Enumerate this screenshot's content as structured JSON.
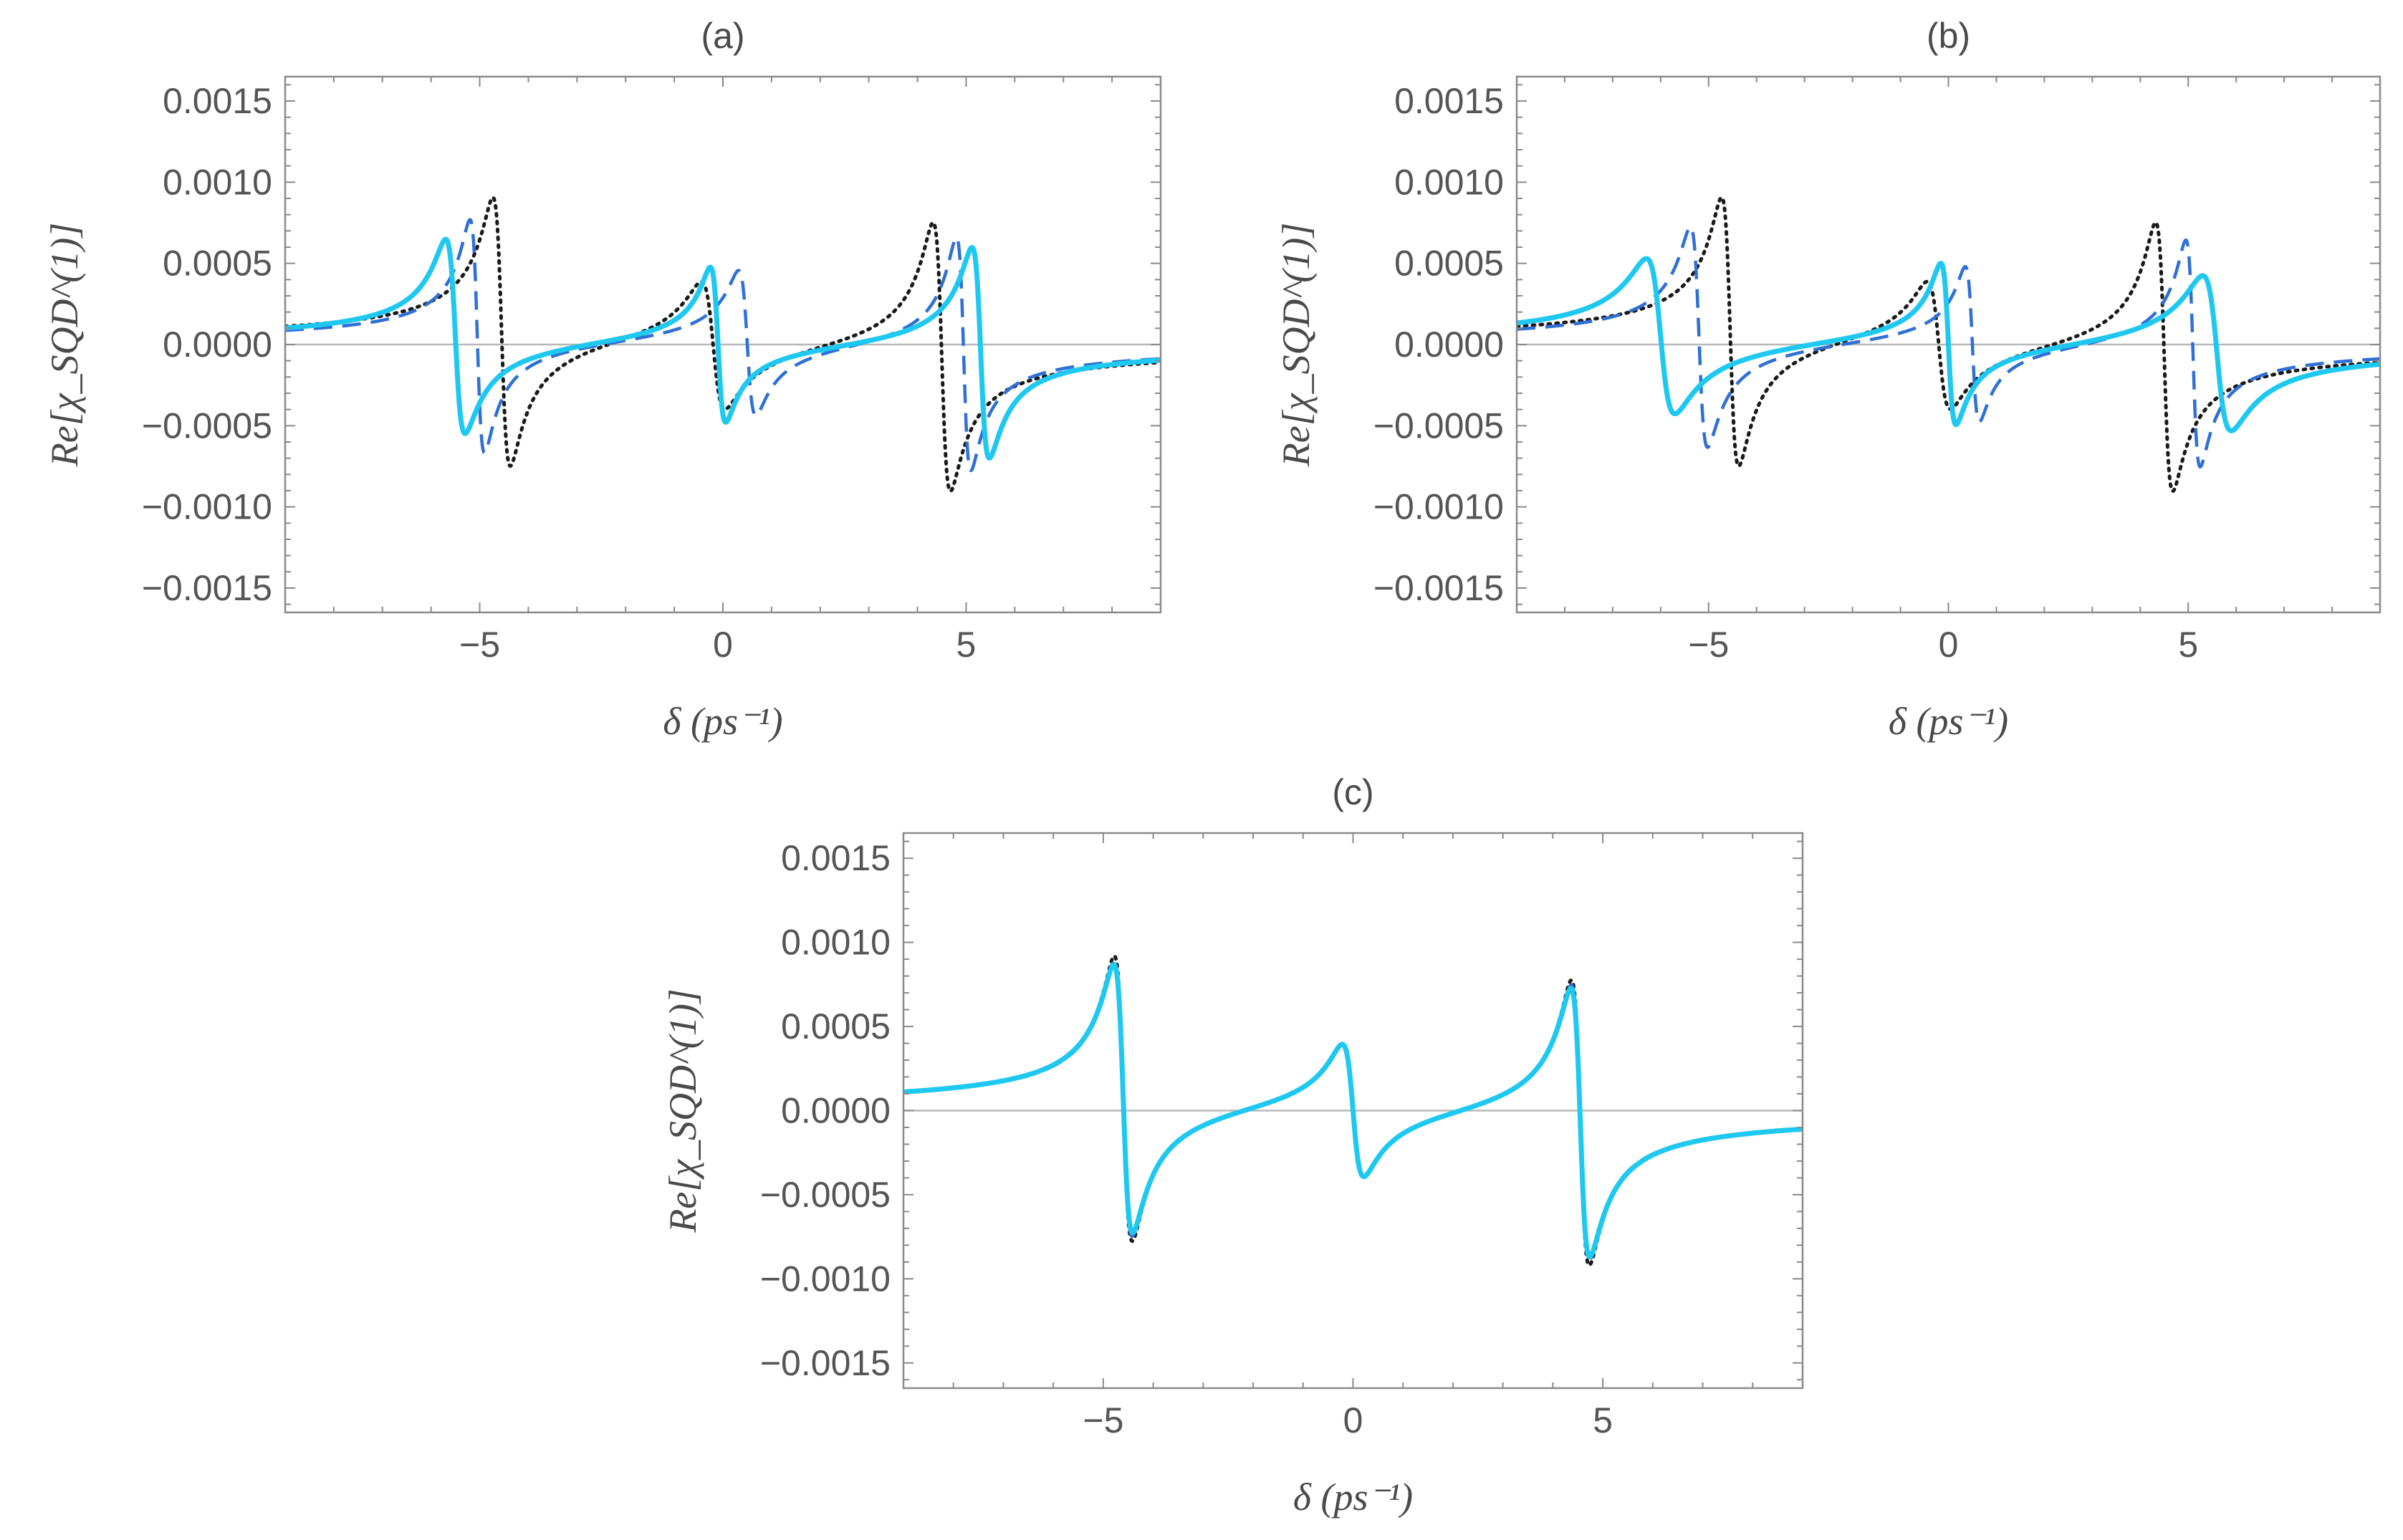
{
  "chart_data": [
    {
      "panel": "(a)",
      "type": "line",
      "title": "(a)",
      "xlabel": "δ (ps⁻¹)",
      "ylabel": "Re[χ_SQD^(1)]",
      "xlim": [
        -9,
        9
      ],
      "ylim": [
        -0.00165,
        0.00165
      ],
      "xticks": [
        -5,
        0,
        5
      ],
      "xtick_labels": [
        "−5",
        "0",
        "5"
      ],
      "yticks": [
        0.0015,
        0.001,
        0.0005,
        0.0,
        -0.0005,
        -0.001,
        -0.0015
      ],
      "ytick_labels": [
        "0.0015",
        "0.0010",
        "0.0005",
        "0.0000",
        "−0.0005",
        "−0.0010",
        "−0.0015"
      ],
      "series": [
        {
          "name": "dotted",
          "style": "dotted",
          "color": "#1a1a1a",
          "resonances": [
            {
              "center": -4.55,
              "amp": 0.00083,
              "gamma": 0.18
            },
            {
              "center": -0.2,
              "amp": 0.0004,
              "gamma": 0.25
            },
            {
              "center": 4.5,
              "amp": 0.00083,
              "gamma": 0.18
            }
          ]
        },
        {
          "name": "dashed",
          "style": "dashed",
          "color": "#2f6fd6",
          "resonances": [
            {
              "center": -5.05,
              "amp": 0.00072,
              "gamma": 0.15
            },
            {
              "center": 0.5,
              "amp": 0.00045,
              "gamma": 0.18
            },
            {
              "center": 4.95,
              "amp": 0.00072,
              "gamma": 0.15
            }
          ]
        },
        {
          "name": "solid",
          "style": "solid",
          "color": "#1ec8f0",
          "resonances": [
            {
              "center": -5.5,
              "amp": 0.0006,
              "gamma": 0.2
            },
            {
              "center": -0.1,
              "amp": 0.00048,
              "gamma": 0.16
            },
            {
              "center": 5.3,
              "amp": 0.00065,
              "gamma": 0.18
            }
          ]
        }
      ]
    },
    {
      "panel": "(b)",
      "type": "line",
      "title": "(b)",
      "xlabel": "δ (ps⁻¹)",
      "ylabel": "Re[χ_SQD^(1)]",
      "xlim": [
        -9,
        9
      ],
      "ylim": [
        -0.00165,
        0.00165
      ],
      "xticks": [
        -5,
        0,
        5
      ],
      "xtick_labels": [
        "−5",
        "0",
        "5"
      ],
      "yticks": [
        0.0015,
        0.001,
        0.0005,
        0.0,
        -0.0005,
        -0.001,
        -0.0015
      ],
      "ytick_labels": [
        "0.0015",
        "0.0010",
        "0.0005",
        "0.0000",
        "−0.0005",
        "−0.0010",
        "−0.0015"
      ],
      "series": [
        {
          "name": "dotted",
          "style": "dotted",
          "color": "#1a1a1a",
          "resonances": [
            {
              "center": -4.55,
              "amp": 0.00083,
              "gamma": 0.18
            },
            {
              "center": -0.2,
              "amp": 0.0004,
              "gamma": 0.25
            },
            {
              "center": 4.5,
              "amp": 0.00083,
              "gamma": 0.18
            }
          ]
        },
        {
          "name": "dashed",
          "style": "dashed",
          "color": "#2f6fd6",
          "resonances": [
            {
              "center": -5.2,
              "amp": 0.00068,
              "gamma": 0.18
            },
            {
              "center": 0.5,
              "amp": 0.00048,
              "gamma": 0.15
            },
            {
              "center": 5.1,
              "amp": 0.0007,
              "gamma": 0.15
            }
          ]
        },
        {
          "name": "solid",
          "style": "solid",
          "color": "#1ec8f0",
          "resonances": [
            {
              "center": -6.0,
              "amp": 0.00048,
              "gamma": 0.3
            },
            {
              "center": 0.0,
              "amp": 0.0005,
              "gamma": 0.16
            },
            {
              "center": 5.6,
              "amp": 0.00048,
              "gamma": 0.3
            }
          ]
        }
      ]
    },
    {
      "panel": "(c)",
      "type": "line",
      "title": "(c)",
      "xlabel": "δ (ps⁻¹)",
      "ylabel": "Re[χ_SQD^(1)]",
      "xlim": [
        -9,
        9
      ],
      "ylim": [
        -0.00165,
        0.00165
      ],
      "xticks": [
        -5,
        0,
        5
      ],
      "xtick_labels": [
        "−5",
        "0",
        "5"
      ],
      "yticks": [
        0.0015,
        0.001,
        0.0005,
        0.0,
        -0.0005,
        -0.001,
        -0.0015
      ],
      "ytick_labels": [
        "0.0015",
        "0.0010",
        "0.0005",
        "0.0000",
        "−0.0005",
        "−0.0010",
        "−0.0015"
      ],
      "series": [
        {
          "name": "dotted",
          "style": "dotted",
          "color": "#1a1a1a",
          "resonances": [
            {
              "center": -4.6,
              "amp": 0.00085,
              "gamma": 0.18
            },
            {
              "center": 0.0,
              "amp": 0.0004,
              "gamma": 0.22
            },
            {
              "center": 4.55,
              "amp": 0.00085,
              "gamma": 0.18
            }
          ]
        },
        {
          "name": "dashed",
          "style": "dashed",
          "color": "#2f6fd6",
          "resonances": [
            {
              "center": -4.6,
              "amp": 0.00082,
              "gamma": 0.18
            },
            {
              "center": 0.0,
              "amp": 0.0004,
              "gamma": 0.22
            },
            {
              "center": 4.55,
              "amp": 0.00082,
              "gamma": 0.18
            }
          ]
        },
        {
          "name": "solid",
          "style": "solid",
          "color": "#1ec8f0",
          "resonances": [
            {
              "center": -4.6,
              "amp": 0.0008,
              "gamma": 0.19
            },
            {
              "center": 0.0,
              "amp": 0.0004,
              "gamma": 0.22
            },
            {
              "center": 4.55,
              "amp": 0.0008,
              "gamma": 0.19
            }
          ]
        }
      ]
    }
  ]
}
